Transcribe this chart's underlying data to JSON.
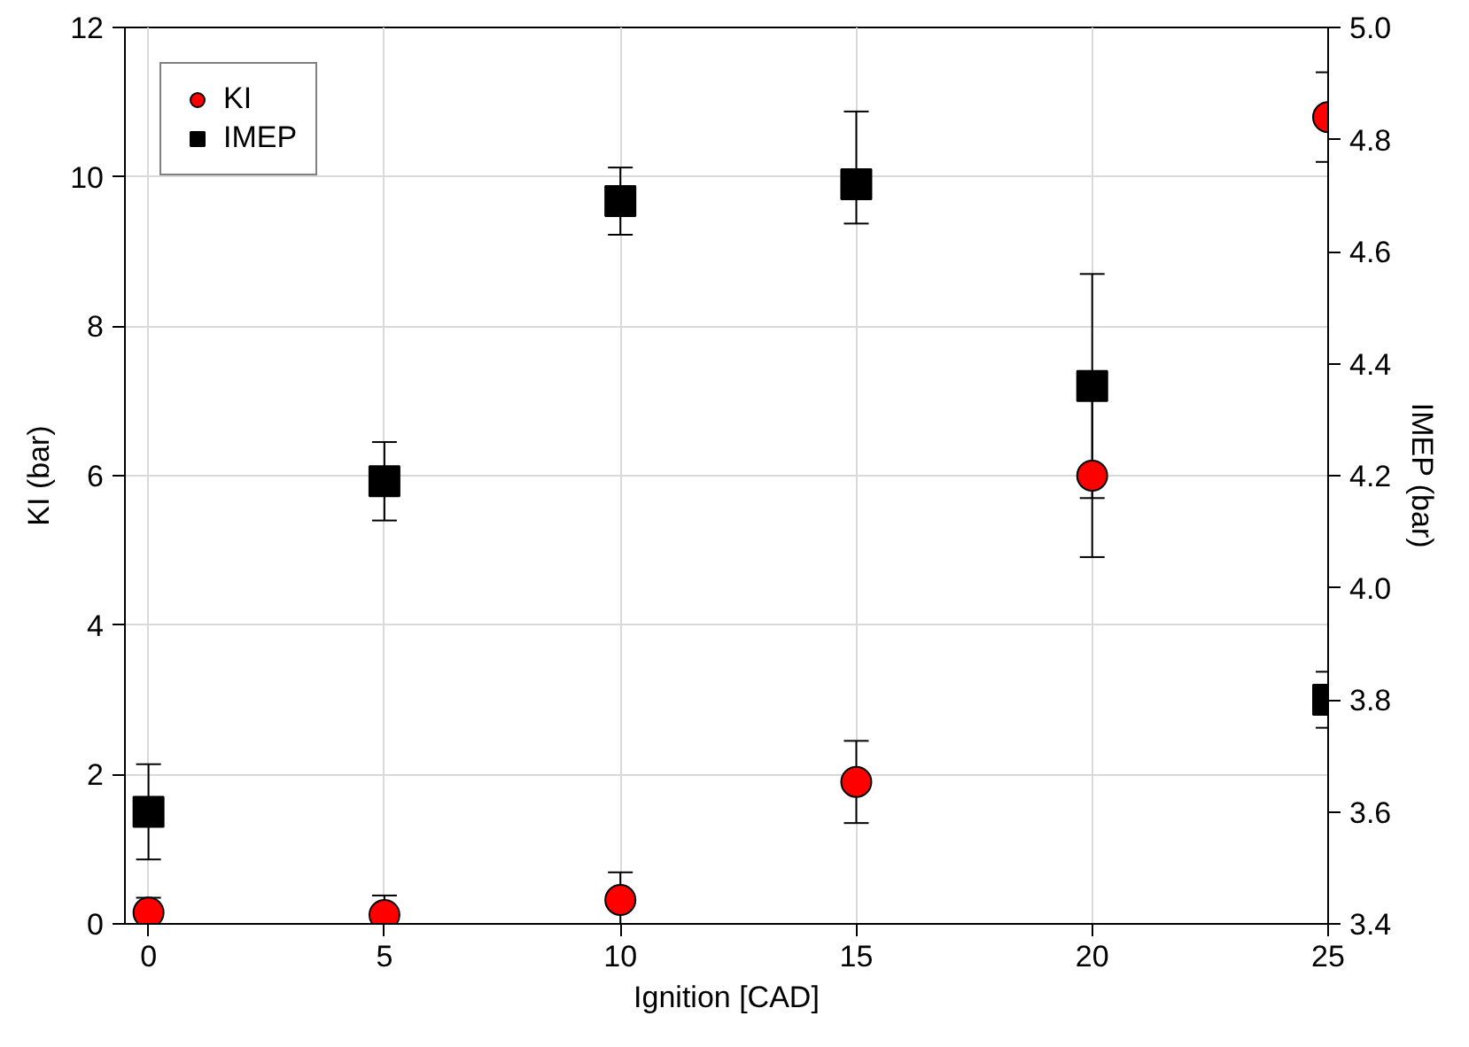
{
  "chart_data": {
    "type": "scatter",
    "xlabel": "Ignition [CAD]",
    "ylabel": "KI (bar)",
    "y2label": "IMEP (bar)",
    "x": [
      0,
      5,
      10,
      15,
      20,
      25
    ],
    "series": [
      {
        "name": "KI",
        "color": "#ff0000",
        "marker": "circle",
        "values": [
          0.15,
          0.12,
          0.32,
          1.9,
          6.0,
          10.8
        ],
        "errors": [
          0.2,
          0.26,
          0.37,
          0.55,
          1.09,
          0.6
        ]
      },
      {
        "name": "IMEP",
        "color": "#000000",
        "marker": "square",
        "axis": "y2",
        "values": [
          3.6,
          4.19,
          4.69,
          4.72,
          4.36,
          3.8
        ],
        "errors": [
          0.085,
          0.07,
          0.06,
          [
            4.65,
            4.85
          ],
          0.2,
          0.05
        ]
      }
    ],
    "xlim": [
      -0.5,
      25
    ],
    "xticks": [
      0,
      5,
      10,
      15,
      20,
      25
    ],
    "ylim": [
      0,
      12
    ],
    "yticks": [
      0,
      2,
      4,
      6,
      8,
      10,
      12
    ],
    "y2lim": [
      3.4,
      5.0
    ],
    "y2ticks": [
      {
        "value": 3.4,
        "label": "3.4"
      },
      {
        "value": 3.6,
        "label": "3.6"
      },
      {
        "value": 3.8,
        "label": "3.8"
      },
      {
        "value": 4.0,
        "label": "4.0"
      },
      {
        "value": 4.2,
        "label": "4.2"
      },
      {
        "value": 4.4,
        "label": "4.4"
      },
      {
        "value": 4.6,
        "label": "4.6"
      },
      {
        "value": 4.8,
        "label": "4.8"
      },
      {
        "value": 5.0,
        "label": "5.0"
      }
    ],
    "grid": true,
    "legend": "top left"
  }
}
